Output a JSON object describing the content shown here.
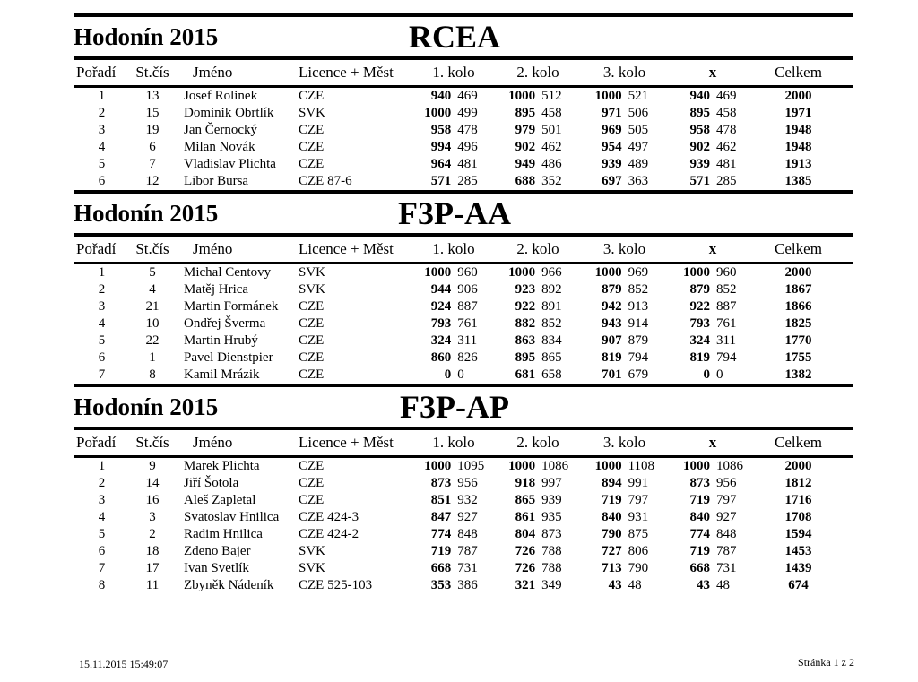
{
  "columns": {
    "rank": "Pořadí",
    "start_number": "St.čís",
    "name": "Jméno",
    "licence": "Licence + Měst",
    "round1": "1. kolo",
    "round2": "2. kolo",
    "round3": "3. kolo",
    "discard": "x",
    "total": "Celkem"
  },
  "sections": [
    {
      "event_title": "Hodonín 2015",
      "category": "RCEA",
      "rows": [
        {
          "rank": "1",
          "start_number": "13",
          "name": "Josef Rolinek",
          "licence": "CZE",
          "round1": [
            "940",
            "469"
          ],
          "round2": [
            "1000",
            "512"
          ],
          "round3": [
            "1000",
            "521"
          ],
          "discard": [
            "940",
            "469"
          ],
          "total": "2000"
        },
        {
          "rank": "2",
          "start_number": "15",
          "name": "Dominik Obrtlík",
          "licence": "SVK",
          "round1": [
            "1000",
            "499"
          ],
          "round2": [
            "895",
            "458"
          ],
          "round3": [
            "971",
            "506"
          ],
          "discard": [
            "895",
            "458"
          ],
          "total": "1971"
        },
        {
          "rank": "3",
          "start_number": "19",
          "name": "Jan Černocký",
          "licence": "CZE",
          "round1": [
            "958",
            "478"
          ],
          "round2": [
            "979",
            "501"
          ],
          "round3": [
            "969",
            "505"
          ],
          "discard": [
            "958",
            "478"
          ],
          "total": "1948"
        },
        {
          "rank": "4",
          "start_number": "6",
          "name": "Milan Novák",
          "licence": "CZE",
          "round1": [
            "994",
            "496"
          ],
          "round2": [
            "902",
            "462"
          ],
          "round3": [
            "954",
            "497"
          ],
          "discard": [
            "902",
            "462"
          ],
          "total": "1948"
        },
        {
          "rank": "5",
          "start_number": "7",
          "name": "Vladislav Plichta",
          "licence": "CZE",
          "round1": [
            "964",
            "481"
          ],
          "round2": [
            "949",
            "486"
          ],
          "round3": [
            "939",
            "489"
          ],
          "discard": [
            "939",
            "481"
          ],
          "total": "1913"
        },
        {
          "rank": "6",
          "start_number": "12",
          "name": "Libor Bursa",
          "licence": "CZE 87-6",
          "round1": [
            "571",
            "285"
          ],
          "round2": [
            "688",
            "352"
          ],
          "round3": [
            "697",
            "363"
          ],
          "discard": [
            "571",
            "285"
          ],
          "total": "1385"
        }
      ]
    },
    {
      "event_title": "Hodonín 2015",
      "category": "F3P-AA",
      "rows": [
        {
          "rank": "1",
          "start_number": "5",
          "name": "Michal Centovy",
          "licence": "SVK",
          "round1": [
            "1000",
            "960"
          ],
          "round2": [
            "1000",
            "966"
          ],
          "round3": [
            "1000",
            "969"
          ],
          "discard": [
            "1000",
            "960"
          ],
          "total": "2000"
        },
        {
          "rank": "2",
          "start_number": "4",
          "name": "Matěj Hrica",
          "licence": "SVK",
          "round1": [
            "944",
            "906"
          ],
          "round2": [
            "923",
            "892"
          ],
          "round3": [
            "879",
            "852"
          ],
          "discard": [
            "879",
            "852"
          ],
          "total": "1867"
        },
        {
          "rank": "3",
          "start_number": "21",
          "name": "Martin Formánek",
          "licence": "CZE",
          "round1": [
            "924",
            "887"
          ],
          "round2": [
            "922",
            "891"
          ],
          "round3": [
            "942",
            "913"
          ],
          "discard": [
            "922",
            "887"
          ],
          "total": "1866"
        },
        {
          "rank": "4",
          "start_number": "10",
          "name": "Ondřej Šverma",
          "licence": "CZE",
          "round1": [
            "793",
            "761"
          ],
          "round2": [
            "882",
            "852"
          ],
          "round3": [
            "943",
            "914"
          ],
          "discard": [
            "793",
            "761"
          ],
          "total": "1825"
        },
        {
          "rank": "5",
          "start_number": "22",
          "name": "Martin Hrubý",
          "licence": "CZE",
          "round1": [
            "324",
            "311"
          ],
          "round2": [
            "863",
            "834"
          ],
          "round3": [
            "907",
            "879"
          ],
          "discard": [
            "324",
            "311"
          ],
          "total": "1770"
        },
        {
          "rank": "6",
          "start_number": "1",
          "name": "Pavel Dienstpier",
          "licence": "CZE",
          "round1": [
            "860",
            "826"
          ],
          "round2": [
            "895",
            "865"
          ],
          "round3": [
            "819",
            "794"
          ],
          "discard": [
            "819",
            "794"
          ],
          "total": "1755"
        },
        {
          "rank": "7",
          "start_number": "8",
          "name": "Kamil Mrázik",
          "licence": "CZE",
          "round1": [
            "0",
            "0"
          ],
          "round2": [
            "681",
            "658"
          ],
          "round3": [
            "701",
            "679"
          ],
          "discard": [
            "0",
            "0"
          ],
          "total": "1382"
        }
      ]
    },
    {
      "event_title": "Hodonín 2015",
      "category": "F3P-AP",
      "rows": [
        {
          "rank": "1",
          "start_number": "9",
          "name": "Marek Plichta",
          "licence": "CZE",
          "round1": [
            "1000",
            "1095"
          ],
          "round2": [
            "1000",
            "1086"
          ],
          "round3": [
            "1000",
            "1108"
          ],
          "discard": [
            "1000",
            "1086"
          ],
          "total": "2000"
        },
        {
          "rank": "2",
          "start_number": "14",
          "name": "Jiří Šotola",
          "licence": "CZE",
          "round1": [
            "873",
            "956"
          ],
          "round2": [
            "918",
            "997"
          ],
          "round3": [
            "894",
            "991"
          ],
          "discard": [
            "873",
            "956"
          ],
          "total": "1812"
        },
        {
          "rank": "3",
          "start_number": "16",
          "name": "Aleš Zapletal",
          "licence": "CZE",
          "round1": [
            "851",
            "932"
          ],
          "round2": [
            "865",
            "939"
          ],
          "round3": [
            "719",
            "797"
          ],
          "discard": [
            "719",
            "797"
          ],
          "total": "1716"
        },
        {
          "rank": "4",
          "start_number": "3",
          "name": "Svatoslav Hnilica",
          "licence": "CZE 424-3",
          "round1": [
            "847",
            "927"
          ],
          "round2": [
            "861",
            "935"
          ],
          "round3": [
            "840",
            "931"
          ],
          "discard": [
            "840",
            "927"
          ],
          "total": "1708"
        },
        {
          "rank": "5",
          "start_number": "2",
          "name": "Radim Hnilica",
          "licence": "CZE 424-2",
          "round1": [
            "774",
            "848"
          ],
          "round2": [
            "804",
            "873"
          ],
          "round3": [
            "790",
            "875"
          ],
          "discard": [
            "774",
            "848"
          ],
          "total": "1594"
        },
        {
          "rank": "6",
          "start_number": "18",
          "name": "Zdeno Bajer",
          "licence": "SVK",
          "round1": [
            "719",
            "787"
          ],
          "round2": [
            "726",
            "788"
          ],
          "round3": [
            "727",
            "806"
          ],
          "discard": [
            "719",
            "787"
          ],
          "total": "1453"
        },
        {
          "rank": "7",
          "start_number": "17",
          "name": "Ivan Svetlík",
          "licence": "SVK",
          "round1": [
            "668",
            "731"
          ],
          "round2": [
            "726",
            "788"
          ],
          "round3": [
            "713",
            "790"
          ],
          "discard": [
            "668",
            "731"
          ],
          "total": "1439"
        },
        {
          "rank": "8",
          "start_number": "11",
          "name": "Zbyněk Nádeník",
          "licence": "CZE 525-103",
          "round1": [
            "353",
            "386"
          ],
          "round2": [
            "321",
            "349"
          ],
          "round3": [
            "43",
            "48"
          ],
          "discard": [
            "43",
            "48"
          ],
          "total": "674"
        }
      ]
    }
  ],
  "footer": {
    "timestamp": "15.11.2015 15:49:07",
    "page_label": "Stránka 1 z 2"
  }
}
